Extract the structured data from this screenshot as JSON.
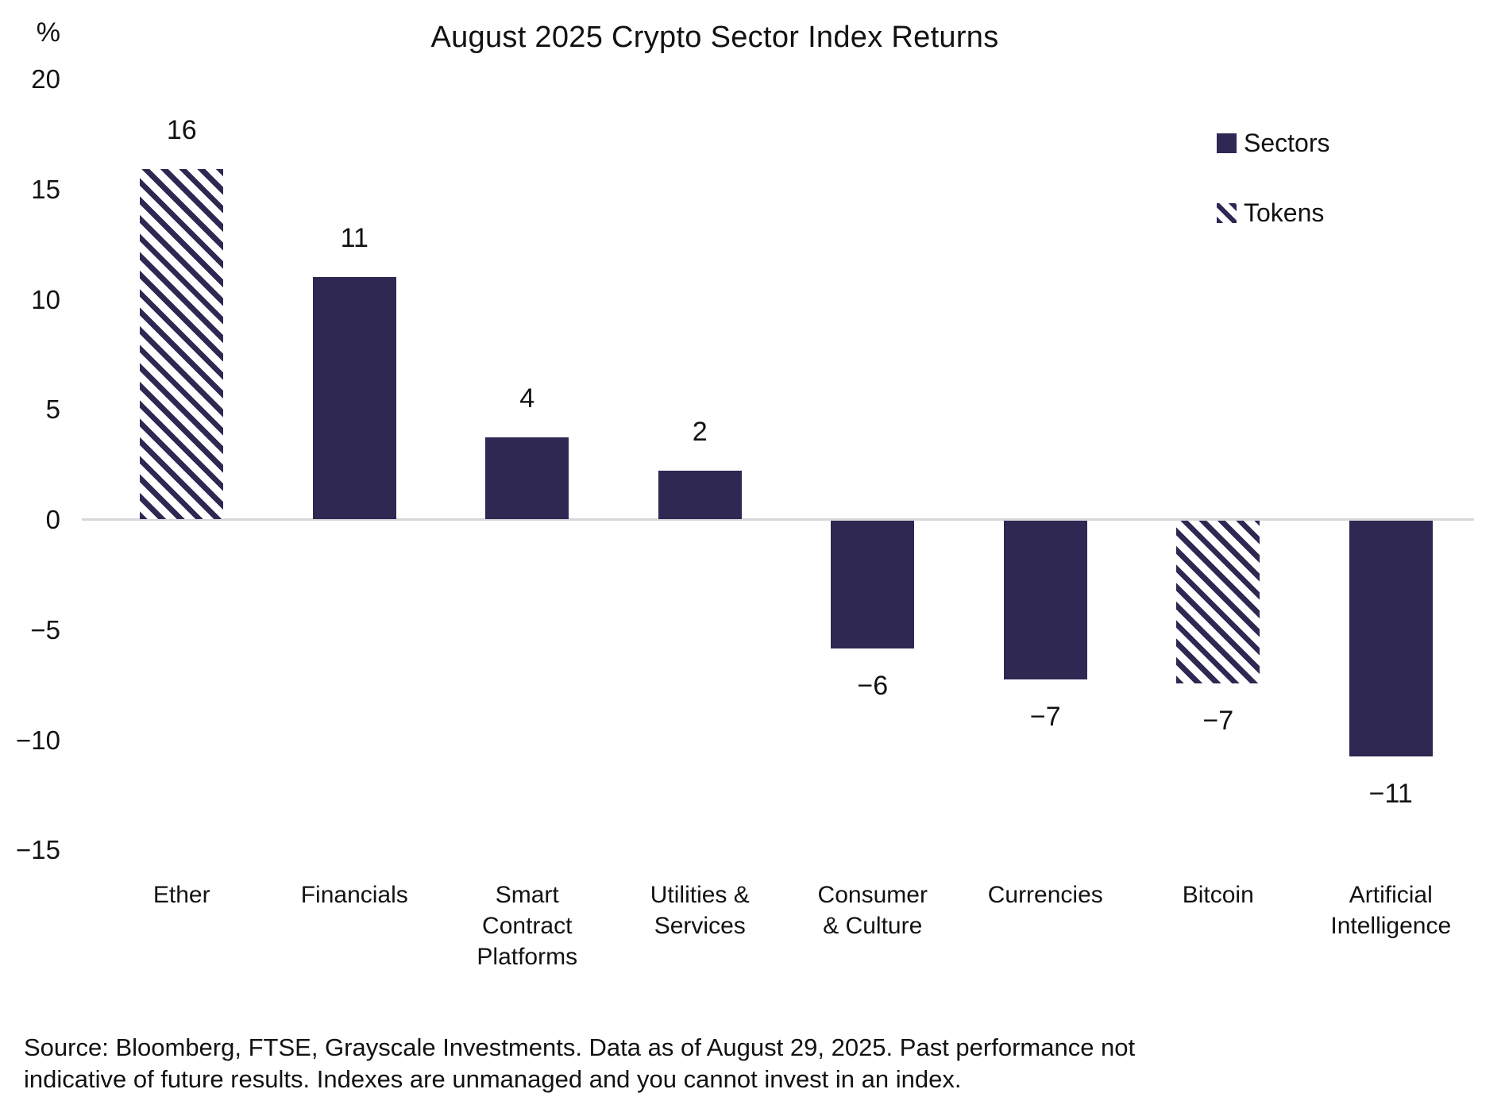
{
  "title": "August 2025 Crypto Sector Index Returns",
  "yaxis": {
    "unit": "%"
  },
  "legend": {
    "sectors_label": "Sectors",
    "tokens_label": "Tokens"
  },
  "colors": {
    "bar_navy": "#2E2852",
    "hatch_background": "#FFFFFF",
    "zero_line": "#D8D8DC",
    "text": "#121212"
  },
  "chart_data": {
    "type": "bar",
    "title": "August 2025 Crypto Sector Index Returns",
    "ylabel": "%",
    "ylim": [
      -15,
      20
    ],
    "yticks": [
      20,
      15,
      10,
      5,
      0,
      -5,
      -10,
      -15
    ],
    "grid": false,
    "legend": [
      "Sectors",
      "Tokens"
    ],
    "legend_position": "upper right",
    "categories": [
      "Ether",
      "Financials",
      "Smart Contract Platforms",
      "Utilities & Services",
      "Consumer & Culture",
      "Currencies",
      "Bitcoin",
      "Artificial Intelligence"
    ],
    "values": [
      16,
      11,
      4,
      2,
      -6,
      -7,
      -7,
      -11
    ],
    "values_precise": [
      15.9,
      11.0,
      3.7,
      2.2,
      -5.8,
      -7.2,
      -7.4,
      -10.7
    ],
    "labels": [
      "16",
      "11",
      "4",
      "2",
      "−6",
      "−7",
      "−7",
      "−11"
    ],
    "styles": [
      "hatched",
      "solid",
      "solid",
      "solid",
      "solid",
      "solid",
      "hatched",
      "solid"
    ],
    "label_lines": [
      [
        "Ether"
      ],
      [
        "Financials"
      ],
      [
        "Smart",
        "Contract",
        "Platforms"
      ],
      [
        "Utilities &",
        "Services"
      ],
      [
        "Consumer",
        "& Culture"
      ],
      [
        "Currencies"
      ],
      [
        "Bitcoin"
      ],
      [
        "Artificial",
        "Intelligence"
      ]
    ],
    "series_meaning": "August 2025 index return, percent"
  },
  "source_note": {
    "line1": "Source: Bloomberg, FTSE, Grayscale Investments. Data as of August 29, 2025. Past performance not",
    "line2": "indicative of future results. Indexes are unmanaged and you cannot invest in an index."
  }
}
